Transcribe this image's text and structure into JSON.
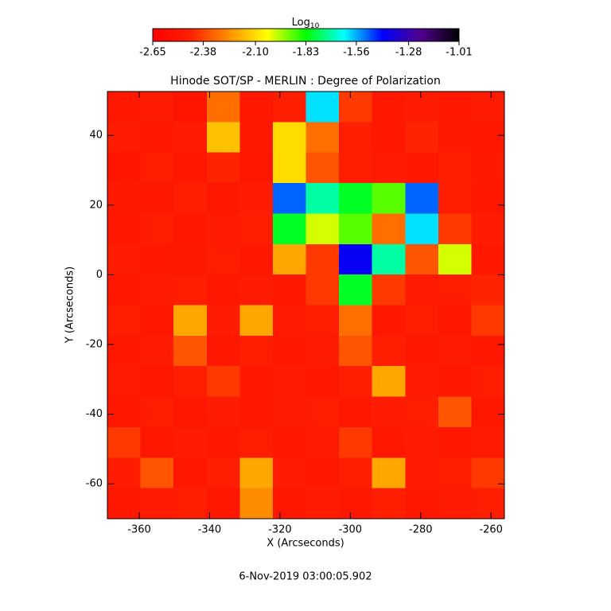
{
  "chart_data": {
    "type": "heatmap",
    "title": "Hinode SOT/SP - MERLIN : Degree of Polarization",
    "xlabel": "X (Arcseconds)",
    "ylabel": "Y (Arcseconds)",
    "footer": "6-Nov-2019 03:00:05.902",
    "colorbar_label": "Log",
    "colorbar_label_sub": "10",
    "colorbar_lim": [
      -2.65,
      -1.01
    ],
    "colorbar_ticks": [
      -2.65,
      -2.38,
      {
        "value": -2.1,
        "label": "-2.10"
      },
      -1.83,
      -1.56,
      -1.28,
      -1.01
    ],
    "colormap": [
      "#ff0000",
      "#ff2000",
      "#ff9000",
      "#ffff00",
      "#00ff00",
      "#00ffff",
      "#0000ff",
      "#50008c",
      "#000000"
    ],
    "xlim": [
      -369.05,
      -256.2
    ],
    "ylim": [
      -70.0,
      52.6
    ],
    "xticks": [
      -360,
      -340,
      -320,
      -300,
      -280,
      -260
    ],
    "yticks": [
      -60,
      -40,
      -20,
      0,
      20,
      40
    ],
    "z": [
      [
        -2.5,
        -2.48,
        -2.52,
        -2.3,
        -2.5,
        -2.45,
        -1.6,
        -2.4,
        -2.5,
        -2.47,
        -2.5,
        -2.48
      ],
      [
        -2.47,
        -2.5,
        -2.48,
        -2.15,
        -2.49,
        -2.1,
        -2.3,
        -2.46,
        -2.5,
        -2.44,
        -2.49,
        -2.5
      ],
      [
        -2.52,
        -2.46,
        -2.5,
        -2.44,
        -2.5,
        -2.1,
        -2.35,
        -2.45,
        -2.48,
        -2.5,
        -2.46,
        -2.49
      ],
      [
        -2.49,
        -2.5,
        -2.45,
        -2.5,
        -2.47,
        -1.5,
        -1.7,
        -1.8,
        -1.9,
        -1.5,
        -2.45,
        -2.5
      ],
      [
        -2.5,
        -2.46,
        -2.5,
        -2.48,
        -2.45,
        -1.8,
        -2.0,
        -1.9,
        -2.3,
        -1.6,
        -2.4,
        -2.47
      ],
      [
        -2.47,
        -2.5,
        -2.49,
        -2.46,
        -2.5,
        -2.2,
        -2.4,
        -1.4,
        -1.7,
        -2.35,
        -2.0,
        -2.5
      ],
      [
        -2.5,
        -2.48,
        -2.45,
        -2.5,
        -2.47,
        -2.5,
        -2.4,
        -1.8,
        -2.4,
        -2.48,
        -2.45,
        -2.44
      ],
      [
        -2.46,
        -2.5,
        -2.2,
        -2.47,
        -2.2,
        -2.48,
        -2.45,
        -2.3,
        -2.5,
        -2.46,
        -2.5,
        -2.4
      ],
      [
        -2.5,
        -2.47,
        -2.35,
        -2.5,
        -2.46,
        -2.5,
        -2.48,
        -2.35,
        -2.45,
        -2.5,
        -2.47,
        -2.5
      ],
      [
        -2.48,
        -2.5,
        -2.46,
        -2.4,
        -2.5,
        -2.47,
        -2.5,
        -2.45,
        -2.2,
        -2.48,
        -2.5,
        -2.46
      ],
      [
        -2.5,
        -2.46,
        -2.5,
        -2.47,
        -2.5,
        -2.48,
        -2.46,
        -2.5,
        -2.47,
        -2.45,
        -2.35,
        -2.5
      ],
      [
        -2.4,
        -2.5,
        -2.47,
        -2.5,
        -2.45,
        -2.5,
        -2.48,
        -2.4,
        -2.5,
        -2.47,
        -2.5,
        -2.48
      ],
      [
        -2.47,
        -2.35,
        -2.5,
        -2.46,
        -2.2,
        -2.47,
        -2.5,
        -2.45,
        -2.2,
        -2.48,
        -2.46,
        -2.4
      ],
      [
        -2.5,
        -2.48,
        -2.46,
        -2.5,
        -2.25,
        -2.5,
        -2.47,
        -2.5,
        -2.45,
        -2.5,
        -2.48,
        -2.46
      ]
    ]
  }
}
